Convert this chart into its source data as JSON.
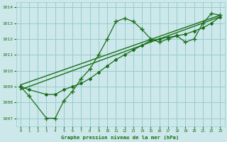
{
  "background_color": "#cce8ea",
  "grid_color": "#99cccc",
  "line_color": "#1a6e1a",
  "title": "Graphe pression niveau de la mer (hPa)",
  "xlim": [
    -0.5,
    23.5
  ],
  "ylim": [
    1006.5,
    1014.3
  ],
  "yticks": [
    1007,
    1008,
    1009,
    1010,
    1011,
    1012,
    1013,
    1014
  ],
  "xticks": [
    0,
    1,
    2,
    3,
    4,
    5,
    6,
    7,
    8,
    9,
    10,
    11,
    12,
    13,
    14,
    15,
    16,
    17,
    18,
    19,
    20,
    21,
    22,
    23
  ],
  "series1_x": [
    0,
    1,
    3,
    4,
    5,
    6,
    7,
    8,
    9,
    10,
    11,
    12,
    13,
    14,
    15,
    16,
    17,
    18,
    19,
    20,
    21,
    22,
    23
  ],
  "series1_y": [
    1009.0,
    1008.4,
    1007.0,
    1007.0,
    1008.1,
    1008.7,
    1009.5,
    1010.1,
    1011.0,
    1012.0,
    1013.1,
    1013.3,
    1013.1,
    1012.6,
    1012.0,
    1011.8,
    1012.0,
    1012.2,
    1011.8,
    1012.0,
    1013.0,
    1013.6,
    1013.5
  ],
  "series2_x": [
    0,
    1,
    3,
    4,
    5,
    6,
    7,
    8,
    9,
    10,
    11,
    12,
    13,
    14,
    15,
    16,
    17,
    18,
    19,
    20,
    21,
    22,
    23
  ],
  "series2_y": [
    1009.0,
    1008.8,
    1008.5,
    1008.5,
    1008.8,
    1009.0,
    1009.2,
    1009.5,
    1009.9,
    1010.3,
    1010.7,
    1011.0,
    1011.3,
    1011.6,
    1011.9,
    1012.0,
    1012.1,
    1012.2,
    1012.3,
    1012.5,
    1012.7,
    1013.0,
    1013.4
  ],
  "series3_x": [
    0,
    23
  ],
  "series3_y": [
    1008.8,
    1013.4
  ],
  "series4_x": [
    0,
    23
  ],
  "series4_y": [
    1009.1,
    1013.5
  ]
}
